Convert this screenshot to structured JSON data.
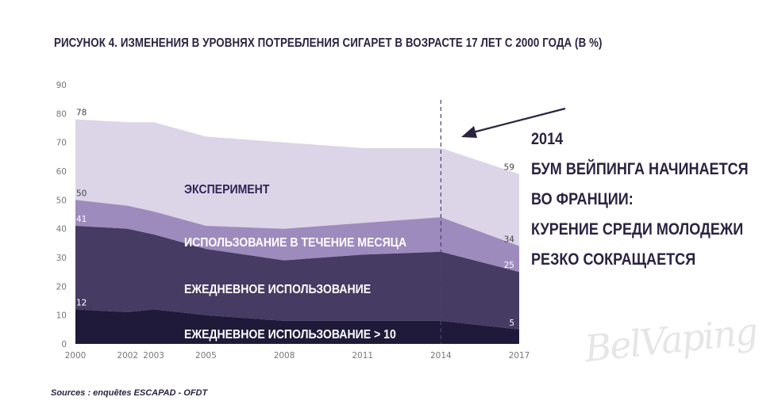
{
  "chart_data": {
    "type": "area",
    "title": "РИСУНОК 4. ИЗМЕНЕНИЯ В УРОВНЯХ ПОТРЕБЛЕНИЯ СИГАРЕТ В ВОЗРАСТЕ 17 ЛЕТ С 2000 ГОДА (В %)",
    "x": [
      2000,
      2002,
      2003,
      2005,
      2008,
      2011,
      2014,
      2017
    ],
    "x_ticks": [
      "2000",
      "2002",
      "2003",
      "2005",
      "2008",
      "2011",
      "2014",
      "2017"
    ],
    "y_ticks": [
      "0",
      "10",
      "20",
      "30",
      "40",
      "50",
      "60",
      "70",
      "80",
      "90"
    ],
    "ylim": [
      0,
      90
    ],
    "grid": false,
    "series": [
      {
        "name": "ЭКСПЕРИМЕНТ",
        "color": "#dcd5e8",
        "values": [
          78,
          77,
          77,
          72,
          70,
          68,
          68,
          59
        ]
      },
      {
        "name": "ИСПОЛЬЗОВАНИЕ В ТЕЧЕНИЕ МЕСЯЦА",
        "color": "#9d8bbd",
        "values": [
          50,
          48,
          46,
          41,
          40,
          42,
          44,
          34
        ]
      },
      {
        "name": "ЕЖЕДНЕВНОЕ ИСПОЛЬЗОВАНИЕ",
        "color": "#463b62",
        "values": [
          41,
          40,
          38,
          33,
          29,
          31,
          32,
          25
        ]
      },
      {
        "name": "ЕЖЕДНЕВНОЕ ИСПОЛЬЗОВАНИЕ > 10",
        "color": "#1f1a3a",
        "values": [
          12,
          11,
          12,
          10,
          8,
          8,
          8,
          5
        ]
      }
    ],
    "data_labels": {
      "start": [
        "78",
        "50",
        "41",
        "12"
      ],
      "end": [
        "59",
        "34",
        "25",
        "5"
      ]
    },
    "marker_year": 2014,
    "annotation": [
      "2014",
      "БУМ ВЕЙПИНГА НАЧИНАЕТСЯ",
      "ВО ФРАНЦИИ:",
      "КУРЕНИЕ СРЕДИ МОЛОДЕЖИ",
      "РЕЗКО СОКРАЩАЕТСЯ"
    ],
    "source": "Sources : enquêtes ESCAPAD - OFDT"
  },
  "watermark": "BelVaping"
}
